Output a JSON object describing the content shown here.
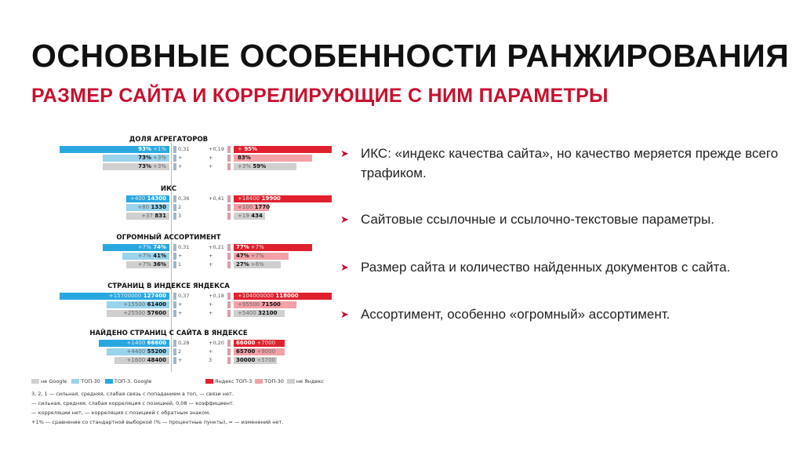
{
  "slide": {
    "title": "ОСНОВНЫЕ ОСОБЕННОСТИ РАНЖИРОВАНИЯ",
    "subtitle": "РАЗМЕР САЙТА И КОРРЕЛИРУЮЩИЕ С НИМ ПАРАМЕТРЫ"
  },
  "colors": {
    "accent": "#c8102e",
    "google_top3": "#29a8e0",
    "google_top30": "#9ad3ec",
    "not_google": "#cfcfcf",
    "yandex_top3": "#e0202e",
    "yandex_top30": "#f3a0a6",
    "not_yandex": "#cfcfcf"
  },
  "chart": {
    "sections": [
      {
        "title": "ДОЛЯ АГРЕГАТОРОВ",
        "left": [
          {
            "value": "93%",
            "delta": "+1%"
          },
          {
            "value": "73%",
            "delta": "+3%"
          },
          {
            "value": "73%",
            "delta": "+3%"
          }
        ],
        "mid_left": [
          "0,31",
          "+",
          "+"
        ],
        "mid_right": [
          "+0,19",
          "+",
          "+"
        ],
        "right": [
          {
            "value": "95%",
            "delta": "+"
          },
          {
            "value": "83%",
            "delta": ""
          },
          {
            "value": "59%",
            "delta": "+3%"
          }
        ]
      },
      {
        "title": "ИКС",
        "left": [
          {
            "value": "14300",
            "delta": "+400"
          },
          {
            "value": "1330",
            "delta": "+80"
          },
          {
            "value": "831",
            "delta": "+37"
          }
        ],
        "mid_left": [
          "0,36",
          "2",
          "3"
        ],
        "mid_right": [
          "+0,41",
          "",
          ""
        ],
        "right": [
          {
            "value": "19900",
            "delta": "+18400"
          },
          {
            "value": "1770",
            "delta": "+100"
          },
          {
            "value": "434",
            "delta": "+19"
          }
        ]
      },
      {
        "title": "ОГРОМНЫЙ АССОРТИМЕНТ",
        "left": [
          {
            "value": "74%",
            "delta": "+7%"
          },
          {
            "value": "41%",
            "delta": "+7%"
          },
          {
            "value": "36%",
            "delta": "+7%"
          }
        ],
        "mid_left": [
          "0,31",
          "+",
          "1"
        ],
        "mid_right": [
          "+0,21",
          "+",
          "+"
        ],
        "right": [
          {
            "value": "77%",
            "delta": "+7%"
          },
          {
            "value": "47%",
            "delta": "+7%"
          },
          {
            "value": "27%",
            "delta": "+6%"
          }
        ]
      },
      {
        "title": "СТРАНИЦ В ИНДЕКСЕ ЯНДЕКСА",
        "left": [
          {
            "value": "127400",
            "delta": "+15700000"
          },
          {
            "value": "61400",
            "delta": "+15500"
          },
          {
            "value": "57600",
            "delta": "+25500"
          }
        ],
        "mid_left": [
          "0,37",
          "+",
          "+"
        ],
        "mid_right": [
          "+0,18",
          "+",
          "+"
        ],
        "right": [
          {
            "value": "118000",
            "delta": "+104000000"
          },
          {
            "value": "71500",
            "delta": "+95500"
          },
          {
            "value": "32100",
            "delta": "+5400"
          }
        ]
      },
      {
        "title": "НАЙДЕНО СТРАНИЦ С САЙТА В ЯНДЕКСЕ",
        "left": [
          {
            "value": "66600",
            "delta": "+1400"
          },
          {
            "value": "55200",
            "delta": "+4400"
          },
          {
            "value": "48400",
            "delta": "+1600"
          }
        ],
        "mid_left": [
          "0,28",
          "2",
          "+"
        ],
        "mid_right": [
          "+0,20",
          "+",
          "3"
        ],
        "right": [
          {
            "value": "66000",
            "delta": "+7000"
          },
          {
            "value": "65700",
            "delta": "+9000"
          },
          {
            "value": "30000",
            "delta": "+5700"
          }
        ]
      }
    ],
    "legend": {
      "google": [
        "не Google",
        "ТОП-30",
        "ТОП-3. Google"
      ],
      "yandex": [
        "Яндекс ТОП-3",
        "ТОП-30",
        "не Яндекс"
      ],
      "notes": [
        "3, 2, 1 — сильная, средняя, слабая связь с попаданием в топ, — связи нет.",
        "— сильная, средняя, слабая корреляция с позицией, 0,08 — коэффициент.",
        "— корреляции нет, — корреляция с позицией с обратным знаком.",
        "+1% — сравнение со стандартной выборкой (% — процентные пункты), = — изменений нет."
      ]
    }
  },
  "bullets": [
    "ИКС: «индекс качества сайта», но качество меряется прежде всего трафиком.",
    "Сайтовые ссылочные и ссылочно-текстовые параметры.",
    "Размер сайта и количество найденных документов с сайта.",
    "Ассортимент, особенно «огромный» ассортимент."
  ]
}
